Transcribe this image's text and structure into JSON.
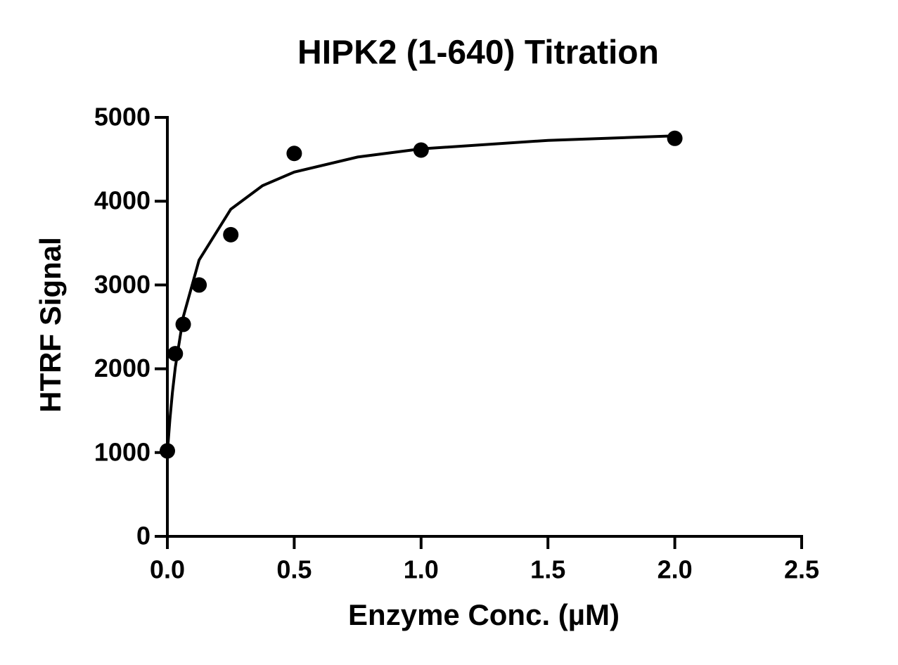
{
  "chart_data": {
    "type": "scatter",
    "title": "HIPK2 (1-640) Titration",
    "x_label": "Enzyme Conc. (µM)",
    "y_label": "HTRF Signal",
    "series": [
      {
        "kind": "points",
        "color": "#000000",
        "x": [
          0,
          0.03125,
          0.0625,
          0.125,
          0.25,
          0.5,
          1.0,
          2.0
        ],
        "values": [
          1020,
          2180,
          2530,
          3000,
          3600,
          4570,
          4610,
          4750
        ]
      },
      {
        "kind": "line",
        "color": "#000000",
        "x": [
          0,
          0.01,
          0.02,
          0.03125,
          0.0625,
          0.125,
          0.25,
          0.375,
          0.5,
          0.75,
          1.0,
          1.5,
          2.0
        ],
        "values": [
          1000,
          1395,
          1718,
          2018,
          2619,
          3297,
          3904,
          4185,
          4347,
          4527,
          4624,
          4726,
          4780
        ]
      }
    ],
    "xlim": [
      0,
      2.5
    ],
    "xticks": [
      {
        "value": 0,
        "label": "0.0"
      },
      0.5,
      {
        "value": 1,
        "label": "1.0"
      },
      1.5,
      {
        "value": 2,
        "label": "2.0"
      },
      2.5
    ],
    "ylim": [
      0,
      5000
    ],
    "yticks": [
      0,
      1000,
      2000,
      3000,
      4000,
      5000
    ],
    "grid": false
  }
}
